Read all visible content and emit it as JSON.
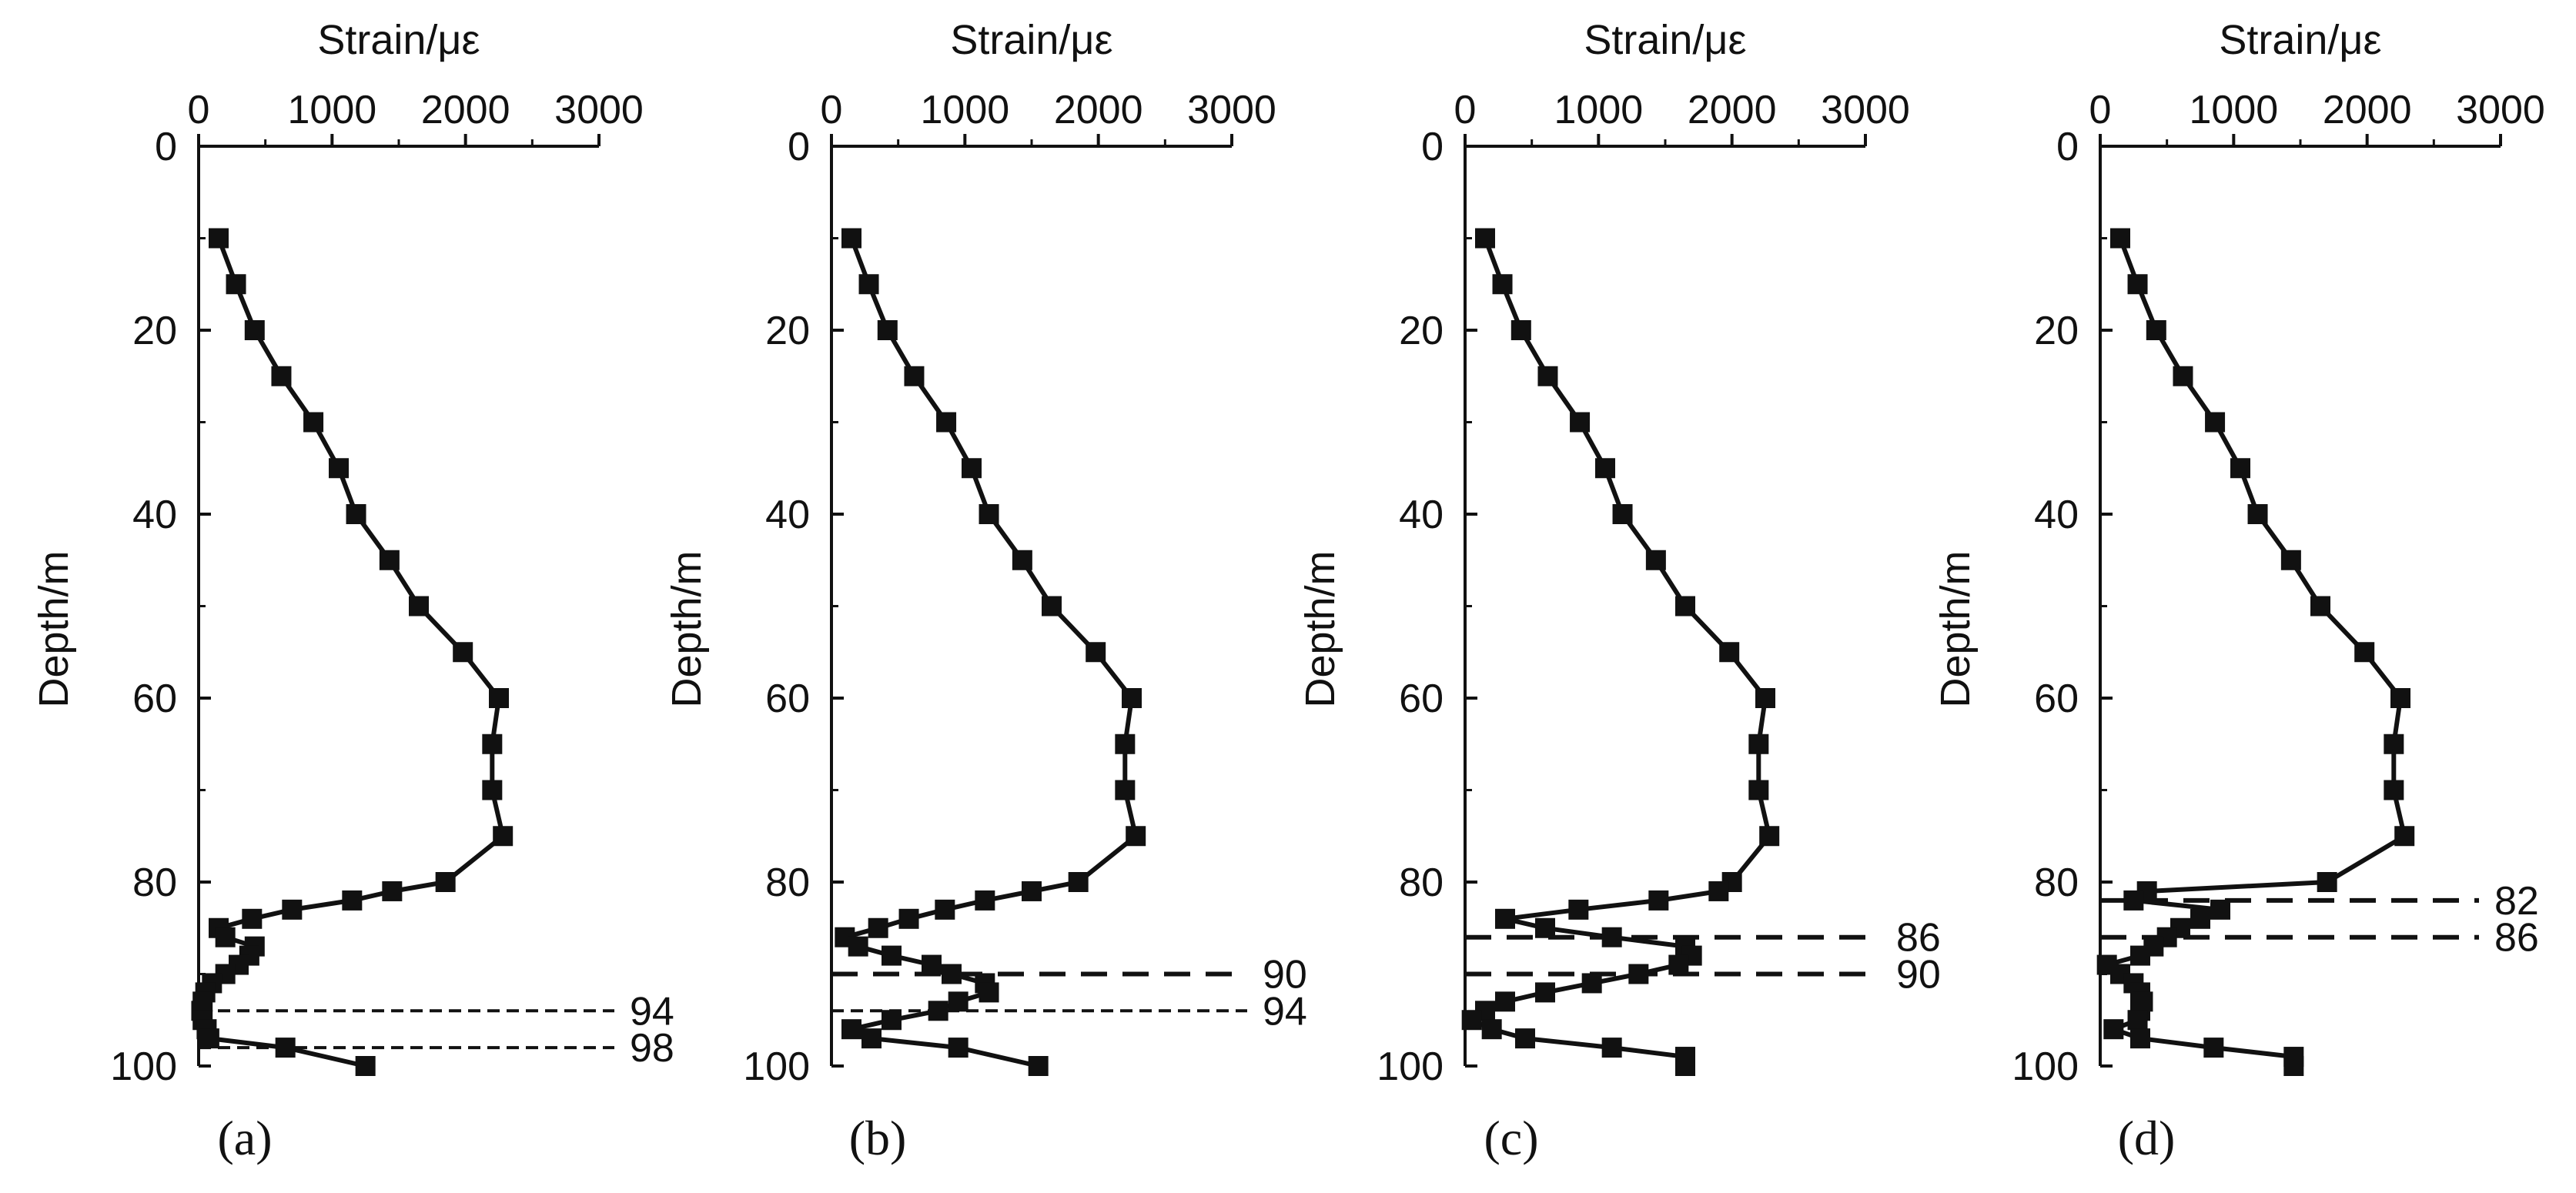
{
  "chart_data": [
    {
      "type": "line",
      "panel_label": "(a)",
      "xlabel": "Strain/με",
      "ylabel": "Depth/m",
      "xlim": [
        0,
        3000
      ],
      "ylim": [
        0,
        100
      ],
      "y_inverted": true,
      "x_axis_position": "top",
      "xticks": [
        "0",
        "1000",
        "2000",
        "3000"
      ],
      "yticks": [
        "0",
        "20",
        "40",
        "60",
        "80",
        "100"
      ],
      "series": [
        {
          "points": [
            {
              "x": 150,
              "y": 10
            },
            {
              "x": 280,
              "y": 15
            },
            {
              "x": 420,
              "y": 20
            },
            {
              "x": 620,
              "y": 25
            },
            {
              "x": 860,
              "y": 30
            },
            {
              "x": 1050,
              "y": 35
            },
            {
              "x": 1180,
              "y": 40
            },
            {
              "x": 1430,
              "y": 45
            },
            {
              "x": 1650,
              "y": 50
            },
            {
              "x": 1980,
              "y": 55
            },
            {
              "x": 2250,
              "y": 60
            },
            {
              "x": 2200,
              "y": 65
            },
            {
              "x": 2200,
              "y": 70
            },
            {
              "x": 2280,
              "y": 75
            },
            {
              "x": 1850,
              "y": 80
            },
            {
              "x": 1450,
              "y": 81
            },
            {
              "x": 1150,
              "y": 82
            },
            {
              "x": 700,
              "y": 83
            },
            {
              "x": 400,
              "y": 84
            },
            {
              "x": 150,
              "y": 85
            },
            {
              "x": 200,
              "y": 86
            },
            {
              "x": 420,
              "y": 87
            },
            {
              "x": 380,
              "y": 88
            },
            {
              "x": 300,
              "y": 89
            },
            {
              "x": 200,
              "y": 90
            },
            {
              "x": 100,
              "y": 91
            },
            {
              "x": 50,
              "y": 92
            },
            {
              "x": 30,
              "y": 93
            },
            {
              "x": 20,
              "y": 94
            },
            {
              "x": 30,
              "y": 95
            },
            {
              "x": 60,
              "y": 96
            },
            {
              "x": 80,
              "y": 97
            },
            {
              "x": 650,
              "y": 98
            },
            {
              "x": 1250,
              "y": 100
            }
          ]
        }
      ],
      "reference_lines": [
        {
          "depth": 94,
          "label": "94",
          "style": "short-dash"
        },
        {
          "depth": 98,
          "label": "98",
          "style": "short-dash"
        }
      ]
    },
    {
      "type": "line",
      "panel_label": "(b)",
      "xlabel": "Strain/με",
      "ylabel": "Depth/m",
      "xlim": [
        0,
        3000
      ],
      "ylim": [
        0,
        100
      ],
      "y_inverted": true,
      "x_axis_position": "top",
      "xticks": [
        "0",
        "1000",
        "2000",
        "3000"
      ],
      "yticks": [
        "0",
        "20",
        "40",
        "60",
        "80",
        "100"
      ],
      "series": [
        {
          "points": [
            {
              "x": 150,
              "y": 10
            },
            {
              "x": 280,
              "y": 15
            },
            {
              "x": 420,
              "y": 20
            },
            {
              "x": 620,
              "y": 25
            },
            {
              "x": 860,
              "y": 30
            },
            {
              "x": 1050,
              "y": 35
            },
            {
              "x": 1180,
              "y": 40
            },
            {
              "x": 1430,
              "y": 45
            },
            {
              "x": 1650,
              "y": 50
            },
            {
              "x": 1980,
              "y": 55
            },
            {
              "x": 2250,
              "y": 60
            },
            {
              "x": 2200,
              "y": 65
            },
            {
              "x": 2200,
              "y": 70
            },
            {
              "x": 2280,
              "y": 75
            },
            {
              "x": 1850,
              "y": 80
            },
            {
              "x": 1500,
              "y": 81
            },
            {
              "x": 1150,
              "y": 82
            },
            {
              "x": 850,
              "y": 83
            },
            {
              "x": 580,
              "y": 84
            },
            {
              "x": 350,
              "y": 85
            },
            {
              "x": 100,
              "y": 86
            },
            {
              "x": 200,
              "y": 87
            },
            {
              "x": 450,
              "y": 88
            },
            {
              "x": 750,
              "y": 89
            },
            {
              "x": 900,
              "y": 90
            },
            {
              "x": 1150,
              "y": 91
            },
            {
              "x": 1180,
              "y": 92
            },
            {
              "x": 950,
              "y": 93
            },
            {
              "x": 800,
              "y": 94
            },
            {
              "x": 450,
              "y": 95
            },
            {
              "x": 150,
              "y": 96
            },
            {
              "x": 300,
              "y": 97
            },
            {
              "x": 950,
              "y": 98
            },
            {
              "x": 1550,
              "y": 100
            }
          ]
        }
      ],
      "reference_lines": [
        {
          "depth": 90,
          "label": "90",
          "style": "long-dash"
        },
        {
          "depth": 94,
          "label": "94",
          "style": "short-dash"
        }
      ]
    },
    {
      "type": "line",
      "panel_label": "(c)",
      "xlabel": "Strain/με",
      "ylabel": "Depth/m",
      "xlim": [
        0,
        3000
      ],
      "ylim": [
        0,
        100
      ],
      "y_inverted": true,
      "x_axis_position": "top",
      "xticks": [
        "0",
        "1000",
        "2000",
        "3000"
      ],
      "yticks": [
        "0",
        "20",
        "40",
        "60",
        "80",
        "100"
      ],
      "series": [
        {
          "points": [
            {
              "x": 150,
              "y": 10
            },
            {
              "x": 280,
              "y": 15
            },
            {
              "x": 420,
              "y": 20
            },
            {
              "x": 620,
              "y": 25
            },
            {
              "x": 860,
              "y": 30
            },
            {
              "x": 1050,
              "y": 35
            },
            {
              "x": 1180,
              "y": 40
            },
            {
              "x": 1430,
              "y": 45
            },
            {
              "x": 1650,
              "y": 50
            },
            {
              "x": 1980,
              "y": 55
            },
            {
              "x": 2250,
              "y": 60
            },
            {
              "x": 2200,
              "y": 65
            },
            {
              "x": 2200,
              "y": 70
            },
            {
              "x": 2280,
              "y": 75
            },
            {
              "x": 2000,
              "y": 80
            },
            {
              "x": 1900,
              "y": 81
            },
            {
              "x": 1450,
              "y": 82
            },
            {
              "x": 850,
              "y": 83
            },
            {
              "x": 300,
              "y": 84
            },
            {
              "x": 600,
              "y": 85
            },
            {
              "x": 1100,
              "y": 86
            },
            {
              "x": 1650,
              "y": 87
            },
            {
              "x": 1700,
              "y": 88
            },
            {
              "x": 1600,
              "y": 89
            },
            {
              "x": 1300,
              "y": 90
            },
            {
              "x": 950,
              "y": 91
            },
            {
              "x": 600,
              "y": 92
            },
            {
              "x": 300,
              "y": 93
            },
            {
              "x": 150,
              "y": 94
            },
            {
              "x": 50,
              "y": 95
            },
            {
              "x": 200,
              "y": 96
            },
            {
              "x": 450,
              "y": 97
            },
            {
              "x": 1100,
              "y": 98
            },
            {
              "x": 1650,
              "y": 99
            },
            {
              "x": 1650,
              "y": 100
            }
          ]
        }
      ],
      "reference_lines": [
        {
          "depth": 86,
          "label": "86",
          "style": "long-dash"
        },
        {
          "depth": 90,
          "label": "90",
          "style": "long-dash"
        }
      ]
    },
    {
      "type": "line",
      "panel_label": "(d)",
      "xlabel": "Strain/με",
      "ylabel": "Depth/m",
      "xlim": [
        0,
        3000
      ],
      "ylim": [
        0,
        100
      ],
      "y_inverted": true,
      "x_axis_position": "top",
      "xticks": [
        "0",
        "1000",
        "2000",
        "3000"
      ],
      "yticks": [
        "0",
        "20",
        "40",
        "60",
        "80",
        "100"
      ],
      "series": [
        {
          "points": [
            {
              "x": 150,
              "y": 10
            },
            {
              "x": 280,
              "y": 15
            },
            {
              "x": 420,
              "y": 20
            },
            {
              "x": 620,
              "y": 25
            },
            {
              "x": 860,
              "y": 30
            },
            {
              "x": 1050,
              "y": 35
            },
            {
              "x": 1180,
              "y": 40
            },
            {
              "x": 1430,
              "y": 45
            },
            {
              "x": 1650,
              "y": 50
            },
            {
              "x": 1980,
              "y": 55
            },
            {
              "x": 2250,
              "y": 60
            },
            {
              "x": 2200,
              "y": 65
            },
            {
              "x": 2200,
              "y": 70
            },
            {
              "x": 2280,
              "y": 75
            },
            {
              "x": 1700,
              "y": 80
            },
            {
              "x": 350,
              "y": 81
            },
            {
              "x": 250,
              "y": 82
            },
            {
              "x": 900,
              "y": 83
            },
            {
              "x": 750,
              "y": 84
            },
            {
              "x": 600,
              "y": 85
            },
            {
              "x": 500,
              "y": 86
            },
            {
              "x": 400,
              "y": 87
            },
            {
              "x": 300,
              "y": 88
            },
            {
              "x": 50,
              "y": 89
            },
            {
              "x": 150,
              "y": 90
            },
            {
              "x": 250,
              "y": 91
            },
            {
              "x": 300,
              "y": 92
            },
            {
              "x": 320,
              "y": 93
            },
            {
              "x": 300,
              "y": 94
            },
            {
              "x": 280,
              "y": 95
            },
            {
              "x": 100,
              "y": 96
            },
            {
              "x": 300,
              "y": 97
            },
            {
              "x": 850,
              "y": 98
            },
            {
              "x": 1450,
              "y": 99
            },
            {
              "x": 1450,
              "y": 100
            }
          ]
        }
      ],
      "reference_lines": [
        {
          "depth": 82,
          "label": "82",
          "style": "long-dash"
        },
        {
          "depth": 86,
          "label": "86",
          "style": "long-dash"
        }
      ]
    }
  ]
}
